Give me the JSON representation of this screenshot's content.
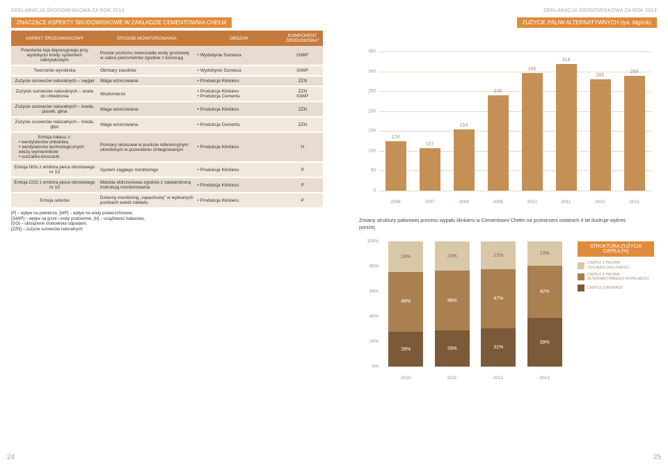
{
  "header_left": "DEKLARACJA ŚRODOWISKOWA ZA ROK 2013",
  "header_right": "DEKLARACJA ŚRODOWISKOWA ZA ROK 2013",
  "left_title": "ZNACZĄCE ASPEKTY ŚRODOWISKOWE W ZAKŁADZIE CEMENTOWNIA CHEŁM",
  "right_title": "ZUŻYCIE PALIW ALTERNATYWNYCH (tys. Mg/rok)",
  "page_left": "24",
  "page_right": "25",
  "table": {
    "headers": [
      "ASPEKT ŚRODOWISKOWY",
      "SPOSÓB MONITOROWANIA",
      "OBSZAR",
      "KOMPONENT ŚRODOWISKA*"
    ],
    "rows": [
      {
        "c1": "Powstanie leja depresyjnego przy wydobyciu kredy systemem odkrywkowym",
        "c2": "Pomiar poziomu zwierciadła wody gruntowej w siatce piezometrów zgodnie z koncesją",
        "c3": [
          "Wydobycie Surowca"
        ],
        "c4": [
          "GiWP"
        ]
      },
      {
        "c1": "Tworzenie wyrobiska",
        "c2": "Obmiary zasobów",
        "c3": [
          "Wydobycie Surowca"
        ],
        "c4": [
          "GiWP"
        ]
      },
      {
        "c1": "Zużycie surowców naturalnych – węgiel",
        "c2": "Waga wzorcowana",
        "c3": [
          "Produkcja Klinkieru"
        ],
        "c4": [
          "ZZN"
        ]
      },
      {
        "c1": "Zużycie surowców naturalnych – woda do chłodzenia",
        "c2": "Wodomierze",
        "c3": [
          "Produkcja Klinkieru",
          "Produkcja Cementu"
        ],
        "c4": [
          "ZZN",
          "GiWP"
        ]
      },
      {
        "c1": "Zużycie surowców naturalnych – kreda, piasek, glina",
        "c2": "Waga wzorcowana",
        "c3": [
          "Produkcja Klinkieru"
        ],
        "c4": [
          "ZZN"
        ]
      },
      {
        "c1": "Zużycie surowców naturalnych – kreda, gips",
        "c2": "Waga wzorcowana",
        "c3": [
          "Produkcja Cementu"
        ],
        "c4": [
          "ZZN"
        ]
      },
      {
        "c1": "Emisja hałasu z:\n• wentylatorów chłodnika\n• wentylatorów technologicznych wieży wymienników\n• suszarko-kruszarki",
        "c2": "Pomiary okresowe w punkcie referencyjnym określonym w pozwoleniu zintegrowanym",
        "c3": [
          "Produkcja Klinkieru"
        ],
        "c4": [
          "H"
        ]
      },
      {
        "c1": "Emisja NOx z emitora pieca obrotowego nr 13",
        "c2": "System ciągłego monitoringu",
        "c3": [
          "Produkcja Klinkieru"
        ],
        "c4": [
          "P"
        ]
      },
      {
        "c1": "Emisja CO2 z emitora pieca obrotowego nr 13",
        "c2": "Metoda obliczeniowa zgodnie z zatwierdzoną instrukcją monitorowania",
        "c3": [
          "Produkcja Klinkieru"
        ],
        "c4": [
          "P"
        ]
      },
      {
        "c1": "Emisja odorów",
        "c2": "Dzienny monitoring „zapachowy\" w wybranych punktach wokół zakładu",
        "c3": [
          "Produkcja Klinkieru"
        ],
        "c4": [
          "P"
        ]
      }
    ],
    "footnote": "[P] – wpływ na powietrze, [WP] – wpływ na wody powierzchniowe,\n[GiWP] – wpływ na grunt i wody podziemne, [H] – uciążliwość hałasowa,\n[GO] – obciążenie środowiska odpadami,\n[ZZN] – zużycie surowców naturalnych"
  },
  "barchart": {
    "ymax": 350,
    "ystep": 50,
    "categories": [
      "2006",
      "2007",
      "2008",
      "2009",
      "2010",
      "2011",
      "2012",
      "2013"
    ],
    "values": [
      124,
      107,
      154,
      240,
      296,
      318,
      280,
      289
    ],
    "bar_color": "#c49055",
    "grid_color": "#e0d8c8"
  },
  "midtext": "Zmiany struktury paliwowej procesu wypału klinkieru w Cementowni Chełm na przestrzeni ostatnich 4 lat ilustruje wykres poniżej.",
  "stacked": {
    "ymax": 100,
    "ystep": 20,
    "title": "STRUKTURA ZUŻYCIA CIEPŁA [%]",
    "categories": [
      "2010",
      "2011",
      "2012",
      "2013"
    ],
    "series": [
      {
        "name": "CIEPŁO Z PALIWA TECHNOLOGICZNEGO",
        "color": "#d8c8a8",
        "vals": [
          24,
          23,
          22,
          19
        ]
      },
      {
        "name": "CIEPŁO Z PALIWA ALTERNATYWNEGO KOPALNEGO",
        "color": "#aa8050",
        "vals": [
          48,
          48,
          47,
          42
        ]
      },
      {
        "name": "CIEPŁO Z BIOMASY",
        "color": "#7a5a38",
        "vals": [
          28,
          29,
          31,
          39
        ]
      }
    ]
  }
}
